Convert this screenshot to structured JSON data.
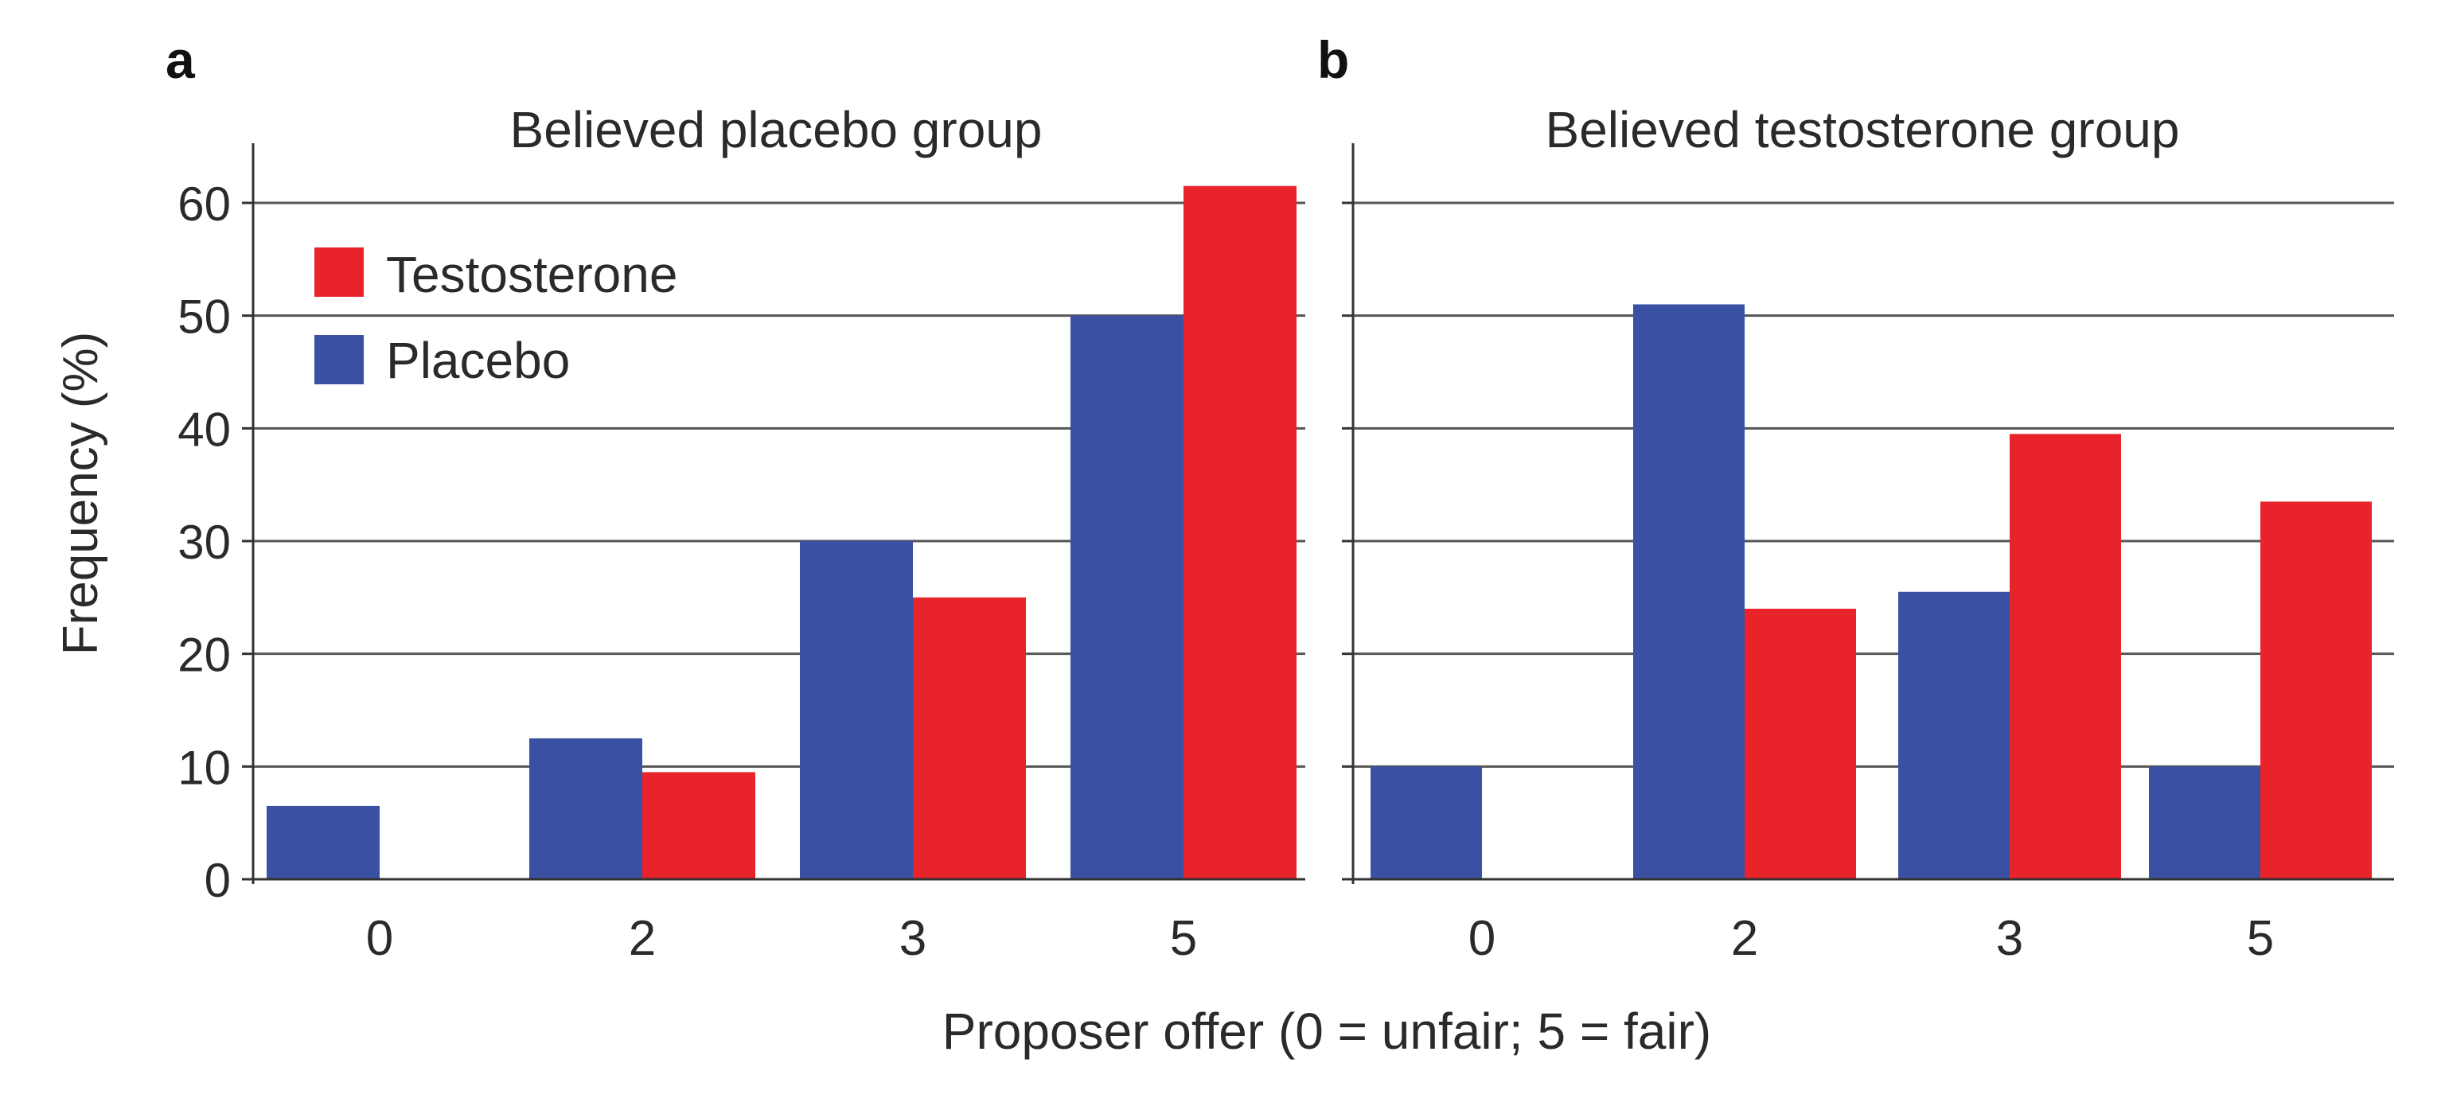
{
  "figure": {
    "xlabel": "Proposer offer (0 = unfair; 5 = fair)",
    "ylabel": "Frequency (%)"
  },
  "colors": {
    "testosterone": "#e8232a",
    "placebo": "#3a50a3"
  },
  "chart_data": [
    {
      "type": "bar",
      "panel": "a",
      "title": "Believed placebo group",
      "categories": [
        "0",
        "2",
        "3",
        "5"
      ],
      "series": [
        {
          "name": "Placebo",
          "values": [
            6.5,
            12.5,
            30,
            50
          ]
        },
        {
          "name": "Testosterone",
          "values": [
            0,
            9.5,
            25,
            61.5
          ]
        }
      ],
      "ylim": [
        0,
        65
      ],
      "yticks": [
        0,
        10,
        20,
        30,
        40,
        50,
        60
      ],
      "grid": true,
      "legend": {
        "placement": "top-left",
        "entries": [
          "Testosterone",
          "Placebo"
        ]
      }
    },
    {
      "type": "bar",
      "panel": "b",
      "title": "Believed testosterone group",
      "categories": [
        "0",
        "2",
        "3",
        "5"
      ],
      "series": [
        {
          "name": "Placebo",
          "values": [
            10,
            51,
            25.5,
            10
          ]
        },
        {
          "name": "Testosterone",
          "values": [
            0,
            24,
            39.5,
            33.5
          ]
        }
      ],
      "ylim": [
        0,
        65
      ],
      "yticks": [
        0,
        10,
        20,
        30,
        40,
        50,
        60
      ],
      "grid": true
    }
  ]
}
